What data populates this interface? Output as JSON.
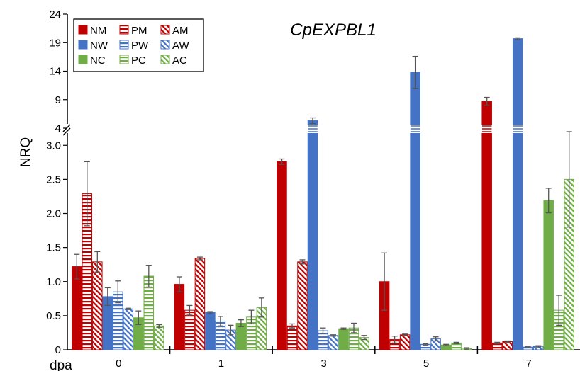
{
  "chart_data": {
    "type": "bar",
    "title": "CpEXPBL1",
    "xlabel": "dpa",
    "ylabel": "NRQ",
    "categories": [
      "0",
      "1",
      "3",
      "5",
      "7"
    ],
    "axis_break": {
      "lower_range": [
        0,
        3.2
      ],
      "upper_range": [
        4,
        24
      ]
    },
    "lower_ticks": [
      "0",
      "0.5",
      "1.0",
      "1.5",
      "2.0",
      "2.5",
      "3.0"
    ],
    "upper_ticks": [
      "4",
      "9",
      "14",
      "19",
      "24"
    ],
    "legend_position": "top-left",
    "grid": false,
    "colors": {
      "red": "#c00000",
      "blue": "#4472c4",
      "green": "#70ad47"
    },
    "series": [
      {
        "name": "NM",
        "color": "#c00000",
        "pattern": "solid",
        "values": [
          1.22,
          0.96,
          2.76,
          1.0,
          8.7
        ],
        "errors": [
          0.18,
          0.11,
          0.04,
          0.42,
          0.7
        ]
      },
      {
        "name": "PM",
        "color": "#c00000",
        "pattern": "horizontal",
        "values": [
          2.29,
          0.58,
          0.35,
          0.15,
          0.1
        ],
        "errors": [
          0.47,
          0.07,
          0.03,
          0.05,
          0.01
        ]
      },
      {
        "name": "AM",
        "color": "#c00000",
        "pattern": "diagonal",
        "values": [
          1.29,
          1.34,
          1.29,
          0.22,
          0.12
        ],
        "errors": [
          0.15,
          0.02,
          0.03,
          0.01,
          0.01
        ]
      },
      {
        "name": "NW",
        "color": "#4472c4",
        "pattern": "solid",
        "values": [
          0.78,
          0.55,
          5.3,
          13.8,
          19.7
        ],
        "errors": [
          0.13,
          0.01,
          0.5,
          2.8,
          0.15
        ]
      },
      {
        "name": "PW",
        "color": "#4472c4",
        "pattern": "horizontal",
        "values": [
          0.85,
          0.42,
          0.28,
          0.08,
          0.04
        ],
        "errors": [
          0.16,
          0.07,
          0.04,
          0.01,
          0.01
        ]
      },
      {
        "name": "AW",
        "color": "#4472c4",
        "pattern": "diagonal",
        "values": [
          0.6,
          0.29,
          0.21,
          0.16,
          0.05
        ],
        "errors": [
          0.01,
          0.07,
          0.01,
          0.03,
          0.01
        ]
      },
      {
        "name": "NC",
        "color": "#70ad47",
        "pattern": "solid",
        "values": [
          0.47,
          0.39,
          0.31,
          0.07,
          2.19
        ],
        "errors": [
          0.1,
          0.05,
          0.01,
          0.01,
          0.18
        ]
      },
      {
        "name": "PC",
        "color": "#70ad47",
        "pattern": "horizontal",
        "values": [
          1.08,
          0.48,
          0.32,
          0.1,
          0.58
        ],
        "errors": [
          0.16,
          0.1,
          0.07,
          0.01,
          0.22
        ]
      },
      {
        "name": "AC",
        "color": "#70ad47",
        "pattern": "diagonal",
        "values": [
          0.35,
          0.62,
          0.18,
          0.02,
          2.5
        ],
        "errors": [
          0.02,
          0.14,
          0.03,
          0.01,
          0.7
        ]
      }
    ]
  }
}
